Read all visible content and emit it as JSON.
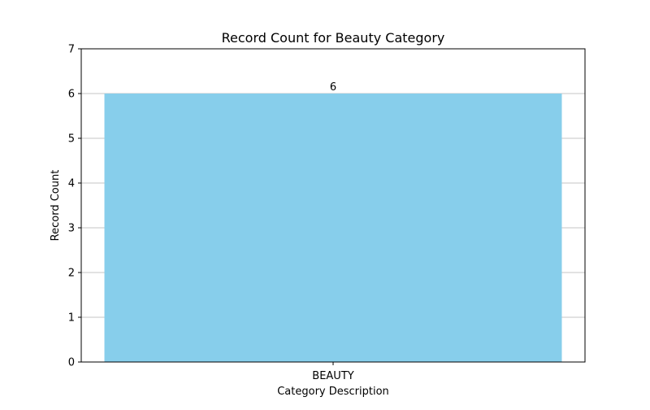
{
  "chart_data": {
    "type": "bar",
    "title": "Record Count for Beauty Category",
    "xlabel": "Category Description",
    "ylabel": "Record Count",
    "categories": [
      "BEAUTY"
    ],
    "values": [
      6
    ],
    "data_labels": [
      "6"
    ],
    "ylim": [
      0,
      7
    ],
    "yticks": [
      0,
      1,
      2,
      3,
      4,
      5,
      6,
      7
    ],
    "grid": "horizontal",
    "bar_color": "#87ceeb"
  }
}
